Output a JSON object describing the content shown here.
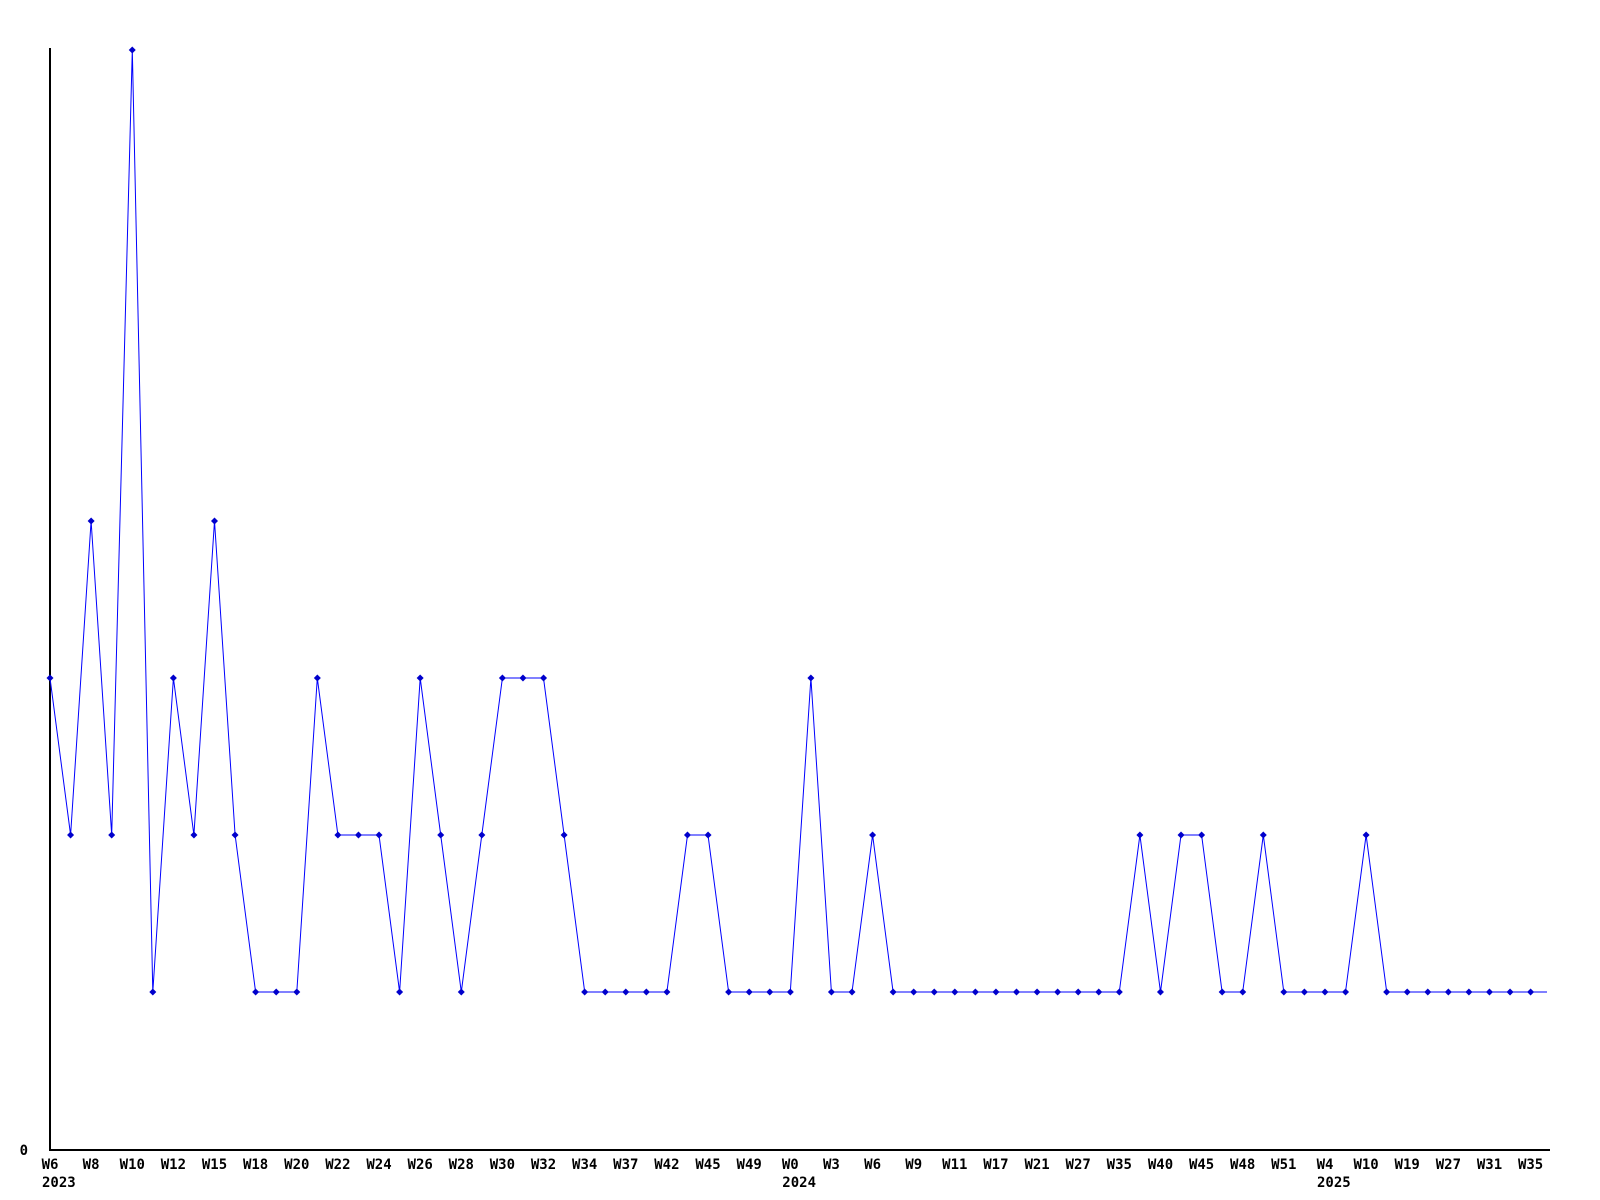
{
  "chart_data": {
    "type": "line",
    "title": "",
    "legend": null,
    "grid": false,
    "line_color": "#0000ff",
    "marker_color": "#0000cc",
    "axis_color": "#000000",
    "background_color": "#ffffff",
    "ylim": [
      0,
      7
    ],
    "y_tick_labels": [
      "0"
    ],
    "x_tick_every": 2,
    "values": [
      3,
      2,
      4,
      2,
      7,
      1,
      3,
      2,
      4,
      2,
      1,
      1,
      1,
      3,
      2,
      2,
      2,
      1,
      3,
      2,
      1,
      2,
      3,
      3,
      3,
      2,
      1,
      1,
      1,
      1,
      1,
      2,
      2,
      1,
      1,
      1,
      1,
      3,
      1,
      1,
      2,
      1,
      1,
      1,
      1,
      1,
      1,
      1,
      1,
      1,
      1,
      1,
      1,
      2,
      1,
      2,
      2,
      1,
      1,
      2,
      1,
      1,
      1,
      1,
      2,
      1,
      1,
      1,
      1,
      1,
      1,
      1,
      1
    ],
    "x_tick_labels": [
      "W6",
      "W8",
      "W10",
      "W12",
      "W15",
      "W18",
      "W20",
      "W22",
      "W24",
      "W26",
      "W28",
      "W30",
      "W32",
      "W34",
      "W37",
      "W42",
      "W45",
      "W49",
      "W0",
      "W3",
      "W6",
      "W9",
      "W11",
      "W17",
      "W21",
      "W27",
      "W35",
      "W40",
      "W45",
      "W48",
      "W51",
      "W4",
      "W10",
      "W19",
      "W27",
      "W31",
      "W35"
    ],
    "year_labels": [
      {
        "text": "2023",
        "tick_index": 0
      },
      {
        "text": "2024",
        "tick_index": 18
      },
      {
        "text": "2025",
        "tick_index": 31
      }
    ]
  }
}
